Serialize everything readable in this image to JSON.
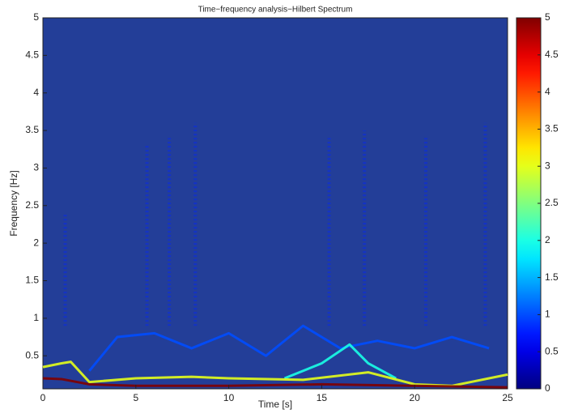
{
  "chart_data": {
    "type": "heatmap",
    "title": "Time−frequency analysis−Hilbert Spectrum",
    "x_label": "Time [s]",
    "y_label": "Frequency [Hz]",
    "colormap": "jet",
    "xlim": [
      0,
      25
    ],
    "ylim": [
      0.06,
      5
    ],
    "xticks": [
      0,
      5,
      10,
      15,
      20,
      25
    ],
    "yticks": [
      0.5,
      1,
      1.5,
      2,
      2.5,
      3,
      3.5,
      4,
      4.5,
      5
    ],
    "clim": [
      0,
      5
    ],
    "cticks": [
      0,
      0.5,
      1,
      1.5,
      2,
      2.5,
      3,
      3.5,
      4,
      4.5,
      5
    ],
    "traces": [
      {
        "intensity": 1,
        "x": [
          2.5,
          4,
          6,
          8,
          10,
          12,
          14,
          16,
          18,
          20,
          22,
          24
        ],
        "y": [
          0.3,
          0.75,
          0.8,
          0.6,
          0.8,
          0.5,
          0.9,
          0.6,
          0.7,
          0.6,
          0.75,
          0.6
        ]
      },
      {
        "intensity": 2,
        "x": [
          13,
          15,
          16.5,
          17.5,
          19
        ],
        "y": [
          0.2,
          0.4,
          0.65,
          0.4,
          0.2
        ]
      },
      {
        "intensity": 3,
        "x": [
          0,
          1,
          1.5,
          2.5,
          5,
          8,
          10,
          14,
          17.5,
          20,
          22,
          25
        ],
        "y": [
          0.35,
          0.4,
          0.42,
          0.15,
          0.2,
          0.22,
          0.2,
          0.18,
          0.28,
          0.12,
          0.1,
          0.25
        ]
      },
      {
        "intensity": 5,
        "x": [
          0,
          1,
          2.5,
          5,
          10,
          15,
          20,
          25
        ],
        "y": [
          0.2,
          0.19,
          0.12,
          0.1,
          0.1,
          0.12,
          0.1,
          0.08
        ]
      }
    ],
    "streaks": {
      "intensity": 0.8,
      "x": [
        1.2,
        5.6,
        6.8,
        8.2,
        15.4,
        17.3,
        20.6,
        23.8
      ],
      "ytop": [
        2.4,
        3.3,
        3.4,
        3.6,
        3.4,
        3.5,
        3.4,
        3.6
      ]
    }
  }
}
